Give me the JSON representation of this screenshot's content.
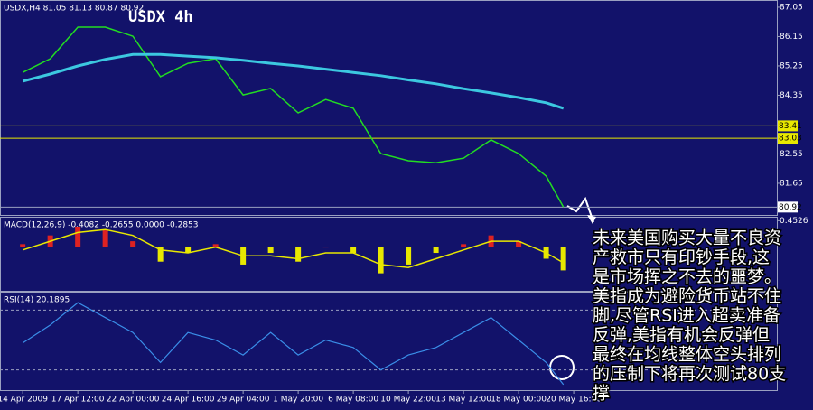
{
  "chart_data": {
    "type": "line",
    "title": "USDX  4h",
    "header": "USDX,H4  81.05 81.13 80.87 80.92",
    "x": [
      0,
      8,
      16,
      24,
      32,
      40,
      48,
      56,
      64,
      72,
      80,
      88,
      96,
      104,
      112,
      120,
      128,
      136,
      144,
      152,
      157
    ],
    "xlim": [
      -6.6,
      219
    ],
    "xticks": [
      {
        "value": 0,
        "label": "14 Apr 2009"
      },
      {
        "value": 16,
        "label": "17 Apr 12:00"
      },
      {
        "value": 32,
        "label": "22 Apr 00:00"
      },
      {
        "value": 48,
        "label": "24 Apr 16:00"
      },
      {
        "value": 64,
        "label": "29 Apr 04:00"
      },
      {
        "value": 80,
        "label": "1 May 20:00"
      },
      {
        "value": 96,
        "label": "6 May 08:00"
      },
      {
        "value": 112,
        "label": "10 May 22:00"
      },
      {
        "value": 128,
        "label": "13 May 12:00"
      },
      {
        "value": 144,
        "label": "18 May 00:00"
      },
      {
        "value": 160,
        "label": "20 May 16:00"
      }
    ],
    "ylim": [
      80.68,
      87.27
    ],
    "yticks": [
      87.05,
      86.15,
      85.25,
      84.35,
      82.55,
      81.65
    ],
    "levels": [
      83.41,
      83.03
    ],
    "level_color": "#e8e800",
    "last": 80.92,
    "series": [
      {
        "color": "#22dd22",
        "values": [
          85.05,
          85.47,
          86.44,
          86.44,
          86.16,
          84.92,
          85.33,
          85.47,
          84.36,
          84.56,
          83.81,
          84.22,
          83.95,
          82.56,
          82.34,
          82.28,
          82.42,
          82.98,
          82.56,
          81.87,
          80.92
        ]
      },
      {
        "color": "#3cc8e0",
        "values": [
          84.78,
          85.0,
          85.25,
          85.45,
          85.6,
          85.6,
          85.55,
          85.5,
          85.42,
          85.33,
          85.25,
          85.15,
          85.05,
          84.95,
          84.82,
          84.7,
          84.55,
          84.42,
          84.28,
          84.12,
          83.95
        ]
      }
    ],
    "macd": {
      "title": "MACD(12,26,9) -0.4082 -0.2655 0.0000 -0.2853",
      "ylim": [
        -0.75,
        0.52
      ],
      "yticks": [
        0.4526
      ],
      "histogram": [
        0.05,
        0.2,
        0.35,
        0.3,
        0.1,
        -0.25,
        -0.1,
        0.05,
        -0.3,
        -0.1,
        -0.25,
        0.0,
        -0.1,
        -0.45,
        -0.3,
        -0.1,
        0.05,
        0.2,
        0.1,
        -0.2,
        -0.4
      ],
      "signal": [
        -0.05,
        0.1,
        0.25,
        0.3,
        0.2,
        -0.05,
        -0.1,
        0.0,
        -0.15,
        -0.15,
        -0.2,
        -0.1,
        -0.1,
        -0.3,
        -0.35,
        -0.2,
        -0.05,
        0.1,
        0.1,
        -0.1,
        -0.27
      ],
      "up_color": "#dd2222",
      "down_color": "#e8e800",
      "signal_color": "#e8e800"
    },
    "rsi": {
      "title": "RSI(14) 20.1895",
      "ylim": [
        16.5,
        82.3
      ],
      "yticks": [
        70,
        30
      ],
      "color": "#3a8ee8",
      "values": [
        48,
        60,
        75,
        65,
        55,
        35,
        55,
        50,
        40,
        55,
        40,
        50,
        45,
        30,
        40,
        45,
        55,
        65,
        50,
        35,
        20.1895
      ]
    },
    "annotation": [
      "未来美国购买大量不良资",
      "产救市只有印钞手段,这",
      "是市场挥之不去的噩梦。",
      "美指成为避险货币站不住",
      "脚,尽管RSI进入超卖准备",
      "反弹,美指有机会反弹但",
      "最终在均线整体空头排列",
      "的压制下将再次测试80支",
      "撑"
    ]
  }
}
